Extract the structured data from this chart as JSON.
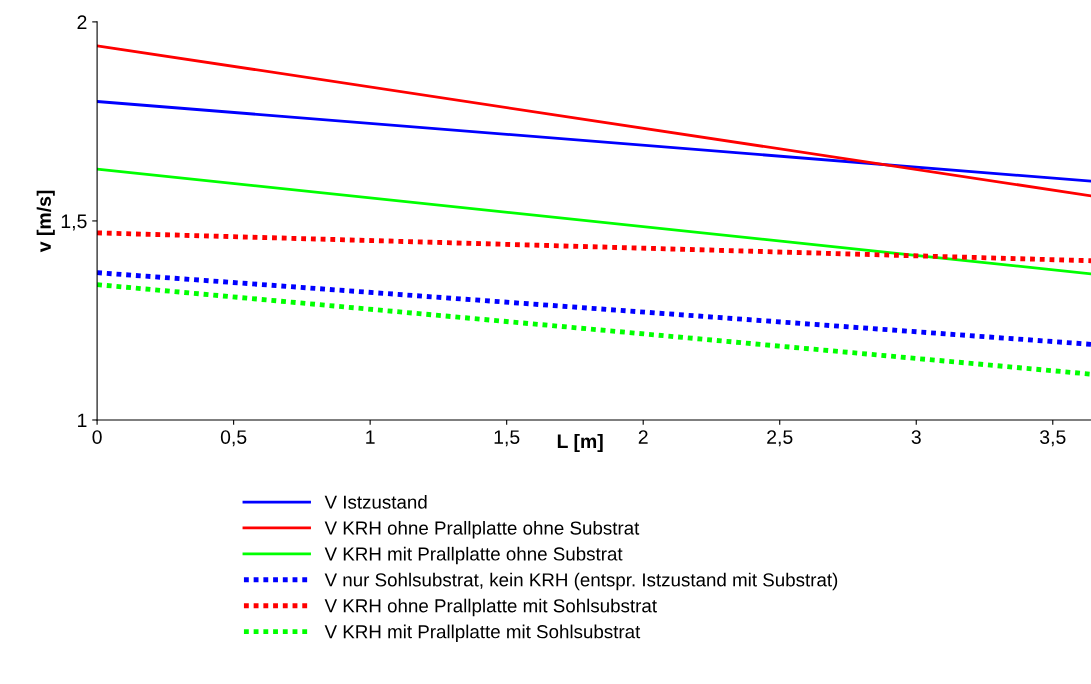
{
  "chart_data": {
    "type": "line",
    "xlabel": "L [m]",
    "ylabel": "v [m/s]",
    "xlim": [
      0,
      3.64
    ],
    "ylim": [
      1,
      2
    ],
    "x": [
      0,
      3.64
    ],
    "xticks": [
      0,
      {
        "value": 0.5,
        "label": "0,5"
      },
      1,
      {
        "value": 1.5,
        "label": "1,5"
      },
      2,
      {
        "value": 2.5,
        "label": "2,5"
      },
      3,
      {
        "value": 3.5,
        "label": "3,5"
      }
    ],
    "yticks": [
      1,
      {
        "value": 1.5,
        "label": "1,5"
      },
      2
    ],
    "grid": false,
    "legend": "bottom",
    "marker": "none",
    "series": [
      {
        "name": "V Istzustand",
        "color": "#0000ff",
        "line_style": "solid",
        "values": [
          1.8,
          1.6
        ]
      },
      {
        "name": "V KRH ohne Prallplatte ohne Substrat",
        "color": "#ff0000",
        "line_style": "solid",
        "values": [
          1.94,
          1.563
        ]
      },
      {
        "name": "V KRH mit Prallplatte ohne Substrat",
        "color": "#00ff00",
        "line_style": "solid",
        "values": [
          1.63,
          1.367
        ]
      },
      {
        "name": "V nur Sohlsubstrat, kein KRH (entspr. Istzustand mit Substrat)",
        "color": "#0000ff",
        "line_style": "dashed",
        "values": [
          1.37,
          1.19
        ]
      },
      {
        "name": "V KRH ohne Prallplatte mit Sohlsubstrat",
        "color": "#ff0000",
        "line_style": "dashed",
        "values": [
          1.47,
          1.4
        ]
      },
      {
        "name": "V KRH mit Prallplatte mit Sohlsubstrat",
        "color": "#00ff00",
        "line_style": "dashed",
        "values": [
          1.34,
          1.115
        ]
      }
    ]
  }
}
